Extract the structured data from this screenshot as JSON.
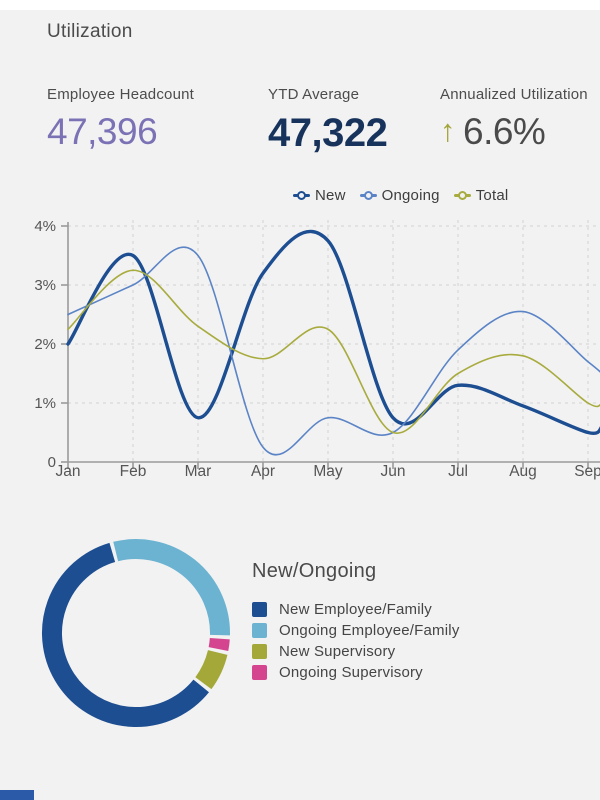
{
  "title": "Utilization",
  "stats": [
    {
      "label": "Employee Headcount",
      "value": "47,396",
      "color": "#7a72b4"
    },
    {
      "label": "YTD Average",
      "value": "47,322",
      "color": "#17335c"
    },
    {
      "label": "Annualized Utilization",
      "value": "6.6%",
      "trend_arrow": "↑",
      "arrow_color": "#a2a63a",
      "color": "#4a4a4a"
    }
  ],
  "chart_data": [
    {
      "type": "line",
      "title": "",
      "categories": [
        "Jan",
        "Feb",
        "Mar",
        "Apr",
        "May",
        "Jun",
        "Jul",
        "Aug",
        "Sep"
      ],
      "unit": "%",
      "ylim": [
        0,
        4
      ],
      "ytick_labels": [
        "0",
        "1%",
        "2%",
        "3%",
        "4%"
      ],
      "grid": "dashed",
      "legend_position": "top-center",
      "series": [
        {
          "name": "New",
          "color": "#1d4e91",
          "line_width": 3.4,
          "values": [
            2.0,
            3.5,
            0.75,
            3.2,
            3.75,
            0.75,
            1.3,
            0.95,
            0.5
          ],
          "edge_value": 0.6
        },
        {
          "name": "Ongoing",
          "color": "#5b84c6",
          "line_width": 1.6,
          "values": [
            2.5,
            3.0,
            3.5,
            0.25,
            0.75,
            0.5,
            1.9,
            2.55,
            1.7
          ],
          "edge_value": 1.5
        },
        {
          "name": "Total",
          "color": "#a8ab3d",
          "line_width": 1.6,
          "values": [
            2.25,
            3.25,
            2.3,
            1.75,
            2.25,
            0.5,
            1.5,
            1.8,
            1.0
          ],
          "edge_value": 1.0
        }
      ]
    },
    {
      "type": "donut",
      "title": "New/Ongoing",
      "segments": [
        {
          "label": "New Employee/Family",
          "color": "#1d4e91",
          "percent": 60
        },
        {
          "label": "Ongoing Employee/Family",
          "color": "#6cb3d2",
          "percent": 29.5
        },
        {
          "label": "New Supervisory",
          "color": "#a4a838",
          "percent": 6.5
        },
        {
          "label": "Ongoing Supervisory",
          "color": "#d5458f",
          "percent": 2
        }
      ],
      "clockwise_order_from_top": [
        1,
        3,
        2,
        0
      ],
      "start_angle_deg": -14,
      "segment_gap_deg": 2.4
    }
  ]
}
